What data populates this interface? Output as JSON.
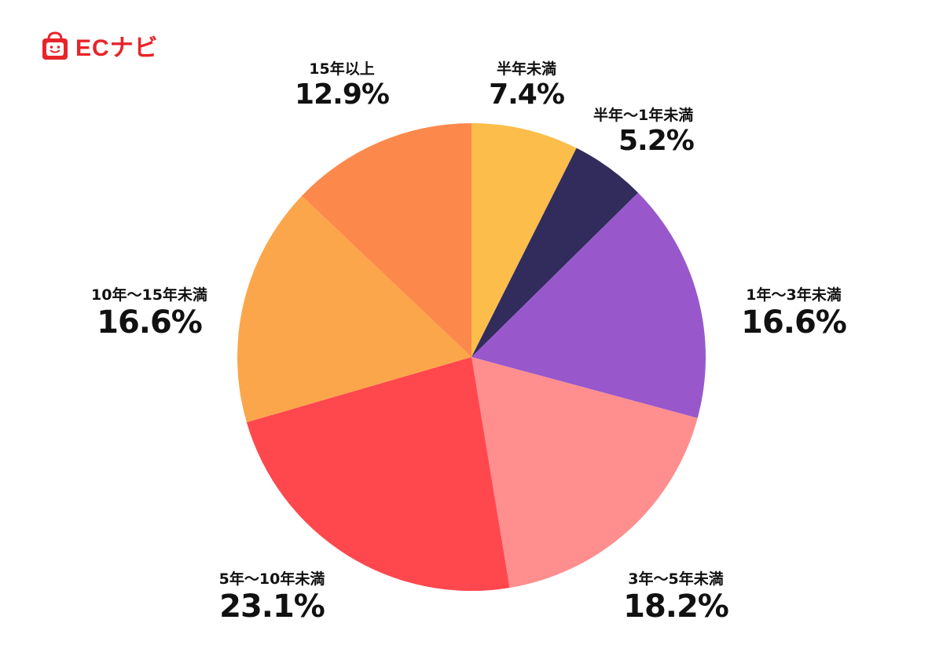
{
  "logo": {
    "text": "ECナビ",
    "color": "#e8242b",
    "icon": "shopping-bag-face-icon"
  },
  "chart_data": {
    "type": "pie",
    "unit": "%",
    "start_angle_deg": 0,
    "direction": "clockwise",
    "categories": [
      "半年未満",
      "半年～1年未満",
      "1年～3年未満",
      "3年～5年未満",
      "5年～10年未満",
      "10年～15年未満",
      "15年以上"
    ],
    "values": [
      7.4,
      5.2,
      16.6,
      18.2,
      23.1,
      16.6,
      12.9
    ],
    "value_labels": [
      "7.4%",
      "5.2%",
      "16.6%",
      "18.2%",
      "23.1%",
      "16.6%",
      "12.9%"
    ],
    "colors": [
      "#fcbd4b",
      "#322c5c",
      "#9858cc",
      "#ff8e8e",
      "#ff474e",
      "#fca64b",
      "#fc894b"
    ],
    "title": "",
    "legend": "none"
  }
}
